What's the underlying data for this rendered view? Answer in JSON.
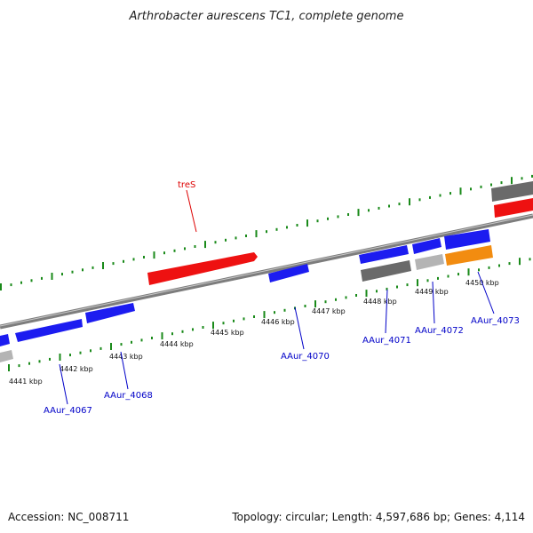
{
  "title": "Arthrobacter aurescens TC1, complete genome",
  "footer": {
    "accession": "Accession: NC_008711",
    "summary": "Topology: circular; Length: 4,597,686 bp; Genes: 4,114"
  },
  "colors": {
    "forward_gene": "#1c1cf0",
    "highlight_gene": "#ee1111",
    "hypothetical_gene": "#6a6a6a",
    "pseudo_gene": "#b4b4b4",
    "rna_gene": "#f28c10",
    "backbone": "#7d7d7d",
    "tick": "#1a8a1a",
    "label_blue": "#0000c8",
    "label_red": "#dd0000"
  },
  "kbp_labels": [
    "4441 kbp",
    "4442 kbp",
    "4443 kbp",
    "4444 kbp",
    "4445 kbp",
    "4446 kbp",
    "4447 kbp",
    "4448 kbp",
    "4449 kbp",
    "4450 kbp"
  ],
  "gene_labels": [
    "treS",
    "AAur_4067",
    "AAur_4068",
    "AAur_4070",
    "AAur_4071",
    "AAur_4072",
    "AAur_4073"
  ]
}
